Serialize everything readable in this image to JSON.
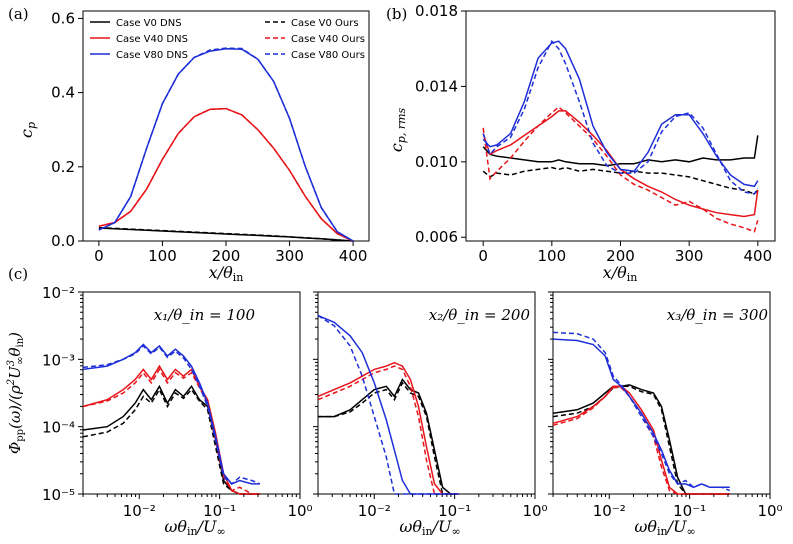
{
  "figure": {
    "panel_labels": [
      "(a)",
      "(b)",
      "(c)"
    ]
  },
  "colors": {
    "V0": "#000000",
    "V40": "#e8141a",
    "V80": "#1f2fd8"
  },
  "chart_data": [
    {
      "id": "a",
      "type": "line",
      "title": "",
      "xlabel": "x/θ_in",
      "ylabel": "c_p",
      "xlim": [
        -25,
        425
      ],
      "ylim": [
        0,
        0.62
      ],
      "xticks": [
        0,
        100,
        200,
        300,
        400
      ],
      "xtick_labels": [
        "0",
        "100",
        "200",
        "300",
        "400"
      ],
      "yticks": [
        0,
        0.2,
        0.4,
        0.6
      ],
      "ytick_labels": [
        "0.0",
        "0.2",
        "0.4",
        "0.6"
      ],
      "legend": {
        "position": "top",
        "entries": [
          {
            "label": "Case V0 DNS",
            "color": "V0",
            "dashed": false
          },
          {
            "label": "Case V40 DNS",
            "color": "V40",
            "dashed": false
          },
          {
            "label": "Case V80 DNS",
            "color": "V80",
            "dashed": false
          },
          {
            "label": "Case V0 Ours",
            "color": "V0",
            "dashed": true
          },
          {
            "label": "Case V40 Ours",
            "color": "V40",
            "dashed": true
          },
          {
            "label": "Case V80 Ours",
            "color": "V80",
            "dashed": true
          }
        ]
      },
      "x": [
        0,
        25,
        50,
        75,
        100,
        125,
        150,
        175,
        200,
        225,
        250,
        275,
        300,
        325,
        350,
        375,
        400
      ],
      "series": [
        {
          "name": "Case V0 DNS",
          "color": "V0",
          "dashed": false,
          "values": [
            0.035,
            0.033,
            0.031,
            0.029,
            0.027,
            0.025,
            0.023,
            0.021,
            0.019,
            0.017,
            0.015,
            0.013,
            0.011,
            0.008,
            0.006,
            0.003,
            0.0
          ]
        },
        {
          "name": "Case V0 Ours",
          "color": "V0",
          "dashed": true,
          "values": [
            0.036,
            0.034,
            0.032,
            0.03,
            0.028,
            0.026,
            0.024,
            0.022,
            0.02,
            0.018,
            0.016,
            0.014,
            0.011,
            0.009,
            0.006,
            0.003,
            0.0
          ]
        },
        {
          "name": "Case V40 DNS",
          "color": "V40",
          "dashed": false,
          "values": [
            0.04,
            0.05,
            0.08,
            0.14,
            0.22,
            0.29,
            0.335,
            0.355,
            0.357,
            0.34,
            0.3,
            0.25,
            0.19,
            0.12,
            0.06,
            0.02,
            0.0
          ]
        },
        {
          "name": "Case V40 Ours",
          "color": "V40",
          "dashed": true,
          "values": [
            0.04,
            0.05,
            0.08,
            0.14,
            0.22,
            0.29,
            0.335,
            0.355,
            0.357,
            0.34,
            0.3,
            0.25,
            0.19,
            0.12,
            0.06,
            0.02,
            0.0
          ]
        },
        {
          "name": "Case V80 DNS",
          "color": "V80",
          "dashed": false,
          "values": [
            0.03,
            0.05,
            0.12,
            0.25,
            0.37,
            0.45,
            0.495,
            0.512,
            0.518,
            0.517,
            0.49,
            0.43,
            0.33,
            0.2,
            0.09,
            0.025,
            0.0
          ]
        },
        {
          "name": "Case V80 Ours",
          "color": "V80",
          "dashed": true,
          "values": [
            0.03,
            0.05,
            0.12,
            0.25,
            0.37,
            0.45,
            0.495,
            0.515,
            0.52,
            0.519,
            0.49,
            0.43,
            0.33,
            0.2,
            0.09,
            0.025,
            0.0
          ]
        }
      ]
    },
    {
      "id": "b",
      "type": "line",
      "title": "",
      "xlabel": "x/θ_in",
      "ylabel": "c_p,rms",
      "xlim": [
        -25,
        425
      ],
      "ylim": [
        0.0058,
        0.018
      ],
      "xticks": [
        0,
        100,
        200,
        300,
        400
      ],
      "xtick_labels": [
        "0",
        "100",
        "200",
        "300",
        "400"
      ],
      "yticks": [
        0.006,
        0.01,
        0.014,
        0.018
      ],
      "ytick_labels": [
        "0.006",
        "0.010",
        "0.014",
        "0.018"
      ],
      "x": [
        0,
        10,
        20,
        40,
        60,
        80,
        100,
        110,
        120,
        140,
        160,
        180,
        200,
        220,
        240,
        260,
        280,
        300,
        320,
        340,
        360,
        380,
        395,
        400
      ],
      "series": [
        {
          "name": "Case V0 DNS",
          "color": "V0",
          "dashed": false,
          "values": [
            0.0108,
            0.0104,
            0.0103,
            0.0102,
            0.0101,
            0.01,
            0.01,
            0.0101,
            0.01,
            0.0099,
            0.0099,
            0.0098,
            0.0099,
            0.0099,
            0.0101,
            0.01,
            0.0101,
            0.01,
            0.0102,
            0.0101,
            0.0101,
            0.0102,
            0.0102,
            0.0114
          ]
        },
        {
          "name": "Case V0 Ours",
          "color": "V0",
          "dashed": true,
          "values": [
            0.0095,
            0.0092,
            0.0094,
            0.0093,
            0.0095,
            0.0096,
            0.0097,
            0.0096,
            0.0097,
            0.0095,
            0.0096,
            0.0095,
            0.0094,
            0.0095,
            0.0094,
            0.0094,
            0.0093,
            0.0092,
            0.009,
            0.0088,
            0.0086,
            0.0085,
            0.0083,
            0.0085
          ]
        },
        {
          "name": "Case V40 DNS",
          "color": "V40",
          "dashed": false,
          "values": [
            0.0115,
            0.0104,
            0.0106,
            0.0109,
            0.0114,
            0.0119,
            0.0124,
            0.0127,
            0.0127,
            0.0121,
            0.0114,
            0.0106,
            0.0096,
            0.0091,
            0.0087,
            0.0084,
            0.008,
            0.0077,
            0.0075,
            0.0073,
            0.0072,
            0.0071,
            0.0072,
            0.0085
          ]
        },
        {
          "name": "Case V40 Ours",
          "color": "V40",
          "dashed": true,
          "values": [
            0.0118,
            0.0091,
            0.0095,
            0.0102,
            0.0111,
            0.0119,
            0.0126,
            0.0129,
            0.0126,
            0.0119,
            0.0112,
            0.0103,
            0.0093,
            0.0088,
            0.0085,
            0.0081,
            0.0077,
            0.0079,
            0.0075,
            0.007,
            0.0067,
            0.0065,
            0.0063,
            0.0069
          ]
        },
        {
          "name": "Case V80 DNS",
          "color": "V80",
          "dashed": false,
          "values": [
            0.0112,
            0.0108,
            0.0109,
            0.0115,
            0.0132,
            0.0155,
            0.0163,
            0.0164,
            0.016,
            0.0144,
            0.0119,
            0.0105,
            0.0096,
            0.0095,
            0.0105,
            0.012,
            0.0125,
            0.0125,
            0.0115,
            0.0103,
            0.0093,
            0.0088,
            0.0087,
            0.009
          ]
        },
        {
          "name": "Case V80 Ours",
          "color": "V80",
          "dashed": true,
          "values": [
            0.0115,
            0.0104,
            0.0108,
            0.0113,
            0.0128,
            0.015,
            0.0164,
            0.016,
            0.0152,
            0.0132,
            0.011,
            0.0098,
            0.0094,
            0.0094,
            0.01,
            0.0116,
            0.0124,
            0.0126,
            0.0118,
            0.0104,
            0.009,
            0.0084,
            0.0083,
            0.0086
          ]
        }
      ]
    },
    {
      "id": "c1",
      "type": "line",
      "scale": "log",
      "annotation": "x₁/θ_in = 100",
      "xlabel": "ωθ_in/U_∞",
      "ylabel": "Φ_pp(ω)/(ρ²U³_∞θ_in)",
      "xlim_log10": [
        -2.7,
        0
      ],
      "ylim_log10": [
        -5,
        -2
      ],
      "xtick_labels": [
        "10⁻²",
        "10⁻¹",
        "10⁰"
      ],
      "ytick_labels": [
        "10⁻⁵",
        "10⁻⁴",
        "10⁻³",
        "10⁻²"
      ],
      "x_log10": [
        -2.7,
        -2.4,
        -2.2,
        -2.05,
        -1.95,
        -1.85,
        -1.75,
        -1.65,
        -1.55,
        -1.45,
        -1.35,
        -1.25,
        -1.15,
        -1.05,
        -0.95,
        -0.85,
        -0.75,
        -0.6,
        -0.5
      ],
      "series": [
        {
          "name": "Case V0 DNS",
          "color": "V0",
          "dashed": false,
          "values_log10": [
            -4.05,
            -4.0,
            -3.85,
            -3.65,
            -3.45,
            -3.6,
            -3.4,
            -3.65,
            -3.45,
            -3.55,
            -3.4,
            -3.6,
            -3.7,
            -4.2,
            -4.8,
            -4.95,
            -5.0,
            -5.0,
            -5.0
          ]
        },
        {
          "name": "Case V0 Ours",
          "color": "V0",
          "dashed": true,
          "values_log10": [
            -4.15,
            -4.08,
            -3.95,
            -3.75,
            -3.55,
            -3.65,
            -3.45,
            -3.7,
            -3.5,
            -3.58,
            -3.45,
            -3.62,
            -3.75,
            -4.3,
            -4.85,
            -4.95,
            -5.0,
            -5.0,
            -5.0
          ]
        },
        {
          "name": "Case V40 DNS",
          "color": "V40",
          "dashed": false,
          "values_log10": [
            -3.7,
            -3.6,
            -3.45,
            -3.3,
            -3.15,
            -3.3,
            -3.1,
            -3.3,
            -3.15,
            -3.25,
            -3.15,
            -3.4,
            -3.6,
            -4.1,
            -4.7,
            -4.95,
            -5.0,
            -5.0,
            -5.0
          ]
        },
        {
          "name": "Case V40 Ours",
          "color": "V40",
          "dashed": true,
          "values_log10": [
            -3.7,
            -3.62,
            -3.5,
            -3.35,
            -3.2,
            -3.35,
            -3.15,
            -3.35,
            -3.2,
            -3.28,
            -3.2,
            -3.42,
            -3.65,
            -4.2,
            -4.75,
            -4.95,
            -4.9,
            -5.0,
            -5.0
          ]
        },
        {
          "name": "Case V80 DNS",
          "color": "V80",
          "dashed": false,
          "values_log10": [
            -3.15,
            -3.1,
            -3.0,
            -2.9,
            -2.78,
            -2.9,
            -2.8,
            -2.95,
            -2.85,
            -2.95,
            -3.1,
            -3.35,
            -3.65,
            -4.15,
            -4.7,
            -4.85,
            -4.8,
            -4.85,
            -4.85
          ]
        },
        {
          "name": "Case V80 Ours",
          "color": "V80",
          "dashed": true,
          "values_log10": [
            -3.12,
            -3.08,
            -3.0,
            -2.92,
            -2.8,
            -2.92,
            -2.82,
            -2.97,
            -2.88,
            -2.98,
            -3.15,
            -3.4,
            -3.7,
            -4.2,
            -4.75,
            -4.85,
            -4.75,
            -4.8,
            -4.85
          ]
        }
      ]
    },
    {
      "id": "c2",
      "type": "line",
      "scale": "log",
      "annotation": "x₂/θ_in = 200",
      "xlabel": "ωθ_in/U_∞",
      "xlim_log10": [
        -2.7,
        0
      ],
      "ylim_log10": [
        -5,
        -2
      ],
      "xtick_labels": [
        "10⁻²",
        "10⁻¹",
        "10⁰"
      ],
      "x_log10": [
        -2.7,
        -2.5,
        -2.3,
        -2.15,
        -2.0,
        -1.85,
        -1.75,
        -1.65,
        -1.55,
        -1.45,
        -1.35,
        -1.25,
        -1.15,
        -1.05,
        -0.95
      ],
      "series": [
        {
          "name": "Case V0 DNS",
          "color": "V0",
          "dashed": false,
          "values_log10": [
            -3.85,
            -3.85,
            -3.75,
            -3.6,
            -3.45,
            -3.4,
            -3.55,
            -3.3,
            -3.45,
            -3.5,
            -3.8,
            -4.35,
            -4.9,
            -5.0,
            -5.0
          ]
        },
        {
          "name": "Case V0 Ours",
          "color": "V0",
          "dashed": true,
          "values_log10": [
            -3.85,
            -3.85,
            -3.78,
            -3.65,
            -3.5,
            -3.45,
            -3.6,
            -3.35,
            -3.5,
            -3.55,
            -3.85,
            -4.45,
            -5.0,
            -5.0,
            -5.0
          ]
        },
        {
          "name": "Case V40 DNS",
          "color": "V40",
          "dashed": false,
          "values_log10": [
            -3.55,
            -3.45,
            -3.35,
            -3.25,
            -3.15,
            -3.1,
            -3.05,
            -3.1,
            -3.3,
            -3.7,
            -4.3,
            -4.85,
            -5.0,
            -5.0,
            -5.0
          ]
        },
        {
          "name": "Case V40 Ours",
          "color": "V40",
          "dashed": true,
          "values_log10": [
            -3.6,
            -3.5,
            -3.4,
            -3.3,
            -3.2,
            -3.15,
            -3.1,
            -3.15,
            -3.4,
            -3.85,
            -4.5,
            -5.0,
            -5.0,
            -5.0,
            -5.0
          ]
        },
        {
          "name": "Case V80 DNS",
          "color": "V80",
          "dashed": false,
          "values_log10": [
            -2.35,
            -2.45,
            -2.65,
            -2.9,
            -3.35,
            -3.9,
            -4.35,
            -4.8,
            -5.0,
            -5.0,
            -5.0,
            -5.0,
            -5.0,
            -5.0,
            -5.0
          ]
        },
        {
          "name": "Case V80 Ours",
          "color": "V80",
          "dashed": true,
          "values_log10": [
            -2.35,
            -2.5,
            -2.8,
            -3.25,
            -3.85,
            -4.45,
            -5.0,
            -5.0,
            -5.0,
            -5.0,
            -5.0,
            -5.0,
            -5.0,
            -5.0,
            -5.0
          ]
        }
      ]
    },
    {
      "id": "c3",
      "type": "line",
      "scale": "log",
      "annotation": "x₃/θ_in = 300",
      "xlabel": "ωθ_in/U_∞",
      "xlim_log10": [
        -2.7,
        0
      ],
      "ylim_log10": [
        -5,
        -2
      ],
      "xtick_labels": [
        "10⁻²",
        "10⁻¹",
        "10⁰"
      ],
      "x_log10": [
        -2.7,
        -2.4,
        -2.2,
        -2.05,
        -1.95,
        -1.85,
        -1.75,
        -1.6,
        -1.45,
        -1.35,
        -1.25,
        -1.15,
        -1.05,
        -0.95,
        -0.85,
        -0.75,
        -0.6,
        -0.5
      ],
      "series": [
        {
          "name": "Case V0 DNS",
          "color": "V0",
          "dashed": false,
          "values_log10": [
            -3.8,
            -3.75,
            -3.65,
            -3.5,
            -3.4,
            -3.4,
            -3.38,
            -3.45,
            -3.5,
            -3.7,
            -4.2,
            -4.75,
            -5.0,
            -5.0,
            -5.0,
            -5.0,
            -5.0,
            -5.0
          ]
        },
        {
          "name": "Case V0 Ours",
          "color": "V0",
          "dashed": true,
          "values_log10": [
            -3.85,
            -3.8,
            -3.7,
            -3.55,
            -3.42,
            -3.4,
            -3.4,
            -3.48,
            -3.52,
            -3.75,
            -4.3,
            -4.85,
            -5.0,
            -5.0,
            -5.0,
            -5.0,
            -5.0,
            -5.0
          ]
        },
        {
          "name": "Case V40 DNS",
          "color": "V40",
          "dashed": false,
          "values_log10": [
            -3.95,
            -3.85,
            -3.7,
            -3.55,
            -3.4,
            -3.4,
            -3.5,
            -3.75,
            -4.05,
            -4.5,
            -4.9,
            -5.0,
            -5.0,
            -5.0,
            -5.0,
            -5.0,
            -5.0,
            -5.0
          ]
        },
        {
          "name": "Case V40 Ours",
          "color": "V40",
          "dashed": true,
          "values_log10": [
            -3.98,
            -3.88,
            -3.72,
            -3.55,
            -3.42,
            -3.42,
            -3.55,
            -3.8,
            -4.15,
            -4.6,
            -4.95,
            -5.0,
            -5.0,
            -5.0,
            -5.0,
            -5.0,
            -5.0,
            -5.0
          ]
        },
        {
          "name": "Case V80 DNS",
          "color": "V80",
          "dashed": false,
          "values_log10": [
            -2.7,
            -2.72,
            -2.78,
            -2.95,
            -3.3,
            -3.4,
            -3.55,
            -3.8,
            -4.1,
            -4.35,
            -4.65,
            -4.85,
            -4.85,
            -4.9,
            -4.85,
            -4.9,
            -4.9,
            -4.9
          ]
        },
        {
          "name": "Case V80 Ours",
          "color": "V80",
          "dashed": true,
          "values_log10": [
            -2.6,
            -2.62,
            -2.7,
            -2.9,
            -3.25,
            -3.38,
            -3.55,
            -3.85,
            -4.15,
            -4.4,
            -4.7,
            -4.85,
            -4.8,
            -4.9,
            -4.85,
            -4.9,
            -4.9,
            -4.95
          ]
        }
      ]
    }
  ]
}
